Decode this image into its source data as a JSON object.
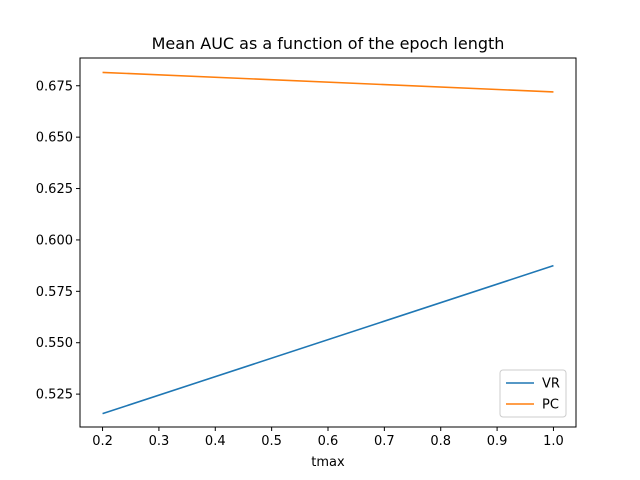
{
  "chart_data": {
    "type": "line",
    "title": "Mean AUC as a function of the epoch length",
    "xlabel": "tmax",
    "ylabel": "",
    "xlim": [
      0.16,
      1.04
    ],
    "ylim": [
      0.509,
      0.6885
    ],
    "xticks": [
      0.2,
      0.3,
      0.4,
      0.5,
      0.6,
      0.7,
      0.8,
      0.9,
      1.0
    ],
    "xtick_labels": [
      "0.2",
      "0.3",
      "0.4",
      "0.5",
      "0.6",
      "0.7",
      "0.8",
      "0.9",
      "1.0"
    ],
    "yticks": [
      0.525,
      0.55,
      0.575,
      0.6,
      0.625,
      0.65,
      0.675
    ],
    "ytick_labels": [
      "0.525",
      "0.550",
      "0.575",
      "0.600",
      "0.625",
      "0.650",
      "0.675"
    ],
    "grid": false,
    "legend_position": "lower-right",
    "series": [
      {
        "name": "VR",
        "color": "#1f77b4",
        "x": [
          0.2,
          1.0
        ],
        "y": [
          0.5155,
          0.5875
        ]
      },
      {
        "name": "PC",
        "color": "#ff7f0e",
        "x": [
          0.2,
          1.0
        ],
        "y": [
          0.6815,
          0.672
        ]
      }
    ]
  }
}
